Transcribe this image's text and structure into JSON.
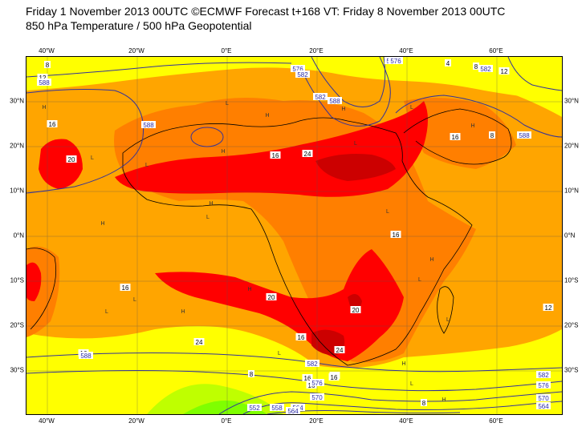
{
  "title": {
    "line1": "Friday 1 November 2013 00UTC ©ECMWF Forecast t+168 VT: Friday 8 November 2013 00UTC",
    "line2": "850 hPa Temperature / 500 hPa Geopotential"
  },
  "axes": {
    "lon_ticks": [
      "40°W",
      "20°W",
      "0°E",
      "20°E",
      "40°E",
      "60°E"
    ],
    "lat_ticks_left": [
      "30°N",
      "20°N",
      "10°N",
      "0°N",
      "10°S",
      "20°S",
      "30°S"
    ],
    "lat_ticks_right": [
      "30°N",
      "20°N",
      "10°N",
      "0°N",
      "10°S",
      "20°S",
      "30°S"
    ]
  },
  "colors": {
    "ocean_warm": "#ffa500",
    "land_warm": "#ff7f00",
    "cool_yellow": "#ffff00",
    "cool_green": "#bfff00",
    "cold_green": "#7fff00",
    "hot_red": "#ff0000",
    "hottest": "#cc0000",
    "contour": "#333399",
    "coast": "#000000"
  },
  "temperature_labels": [
    "16",
    "20",
    "16",
    "24",
    "20",
    "16",
    "16",
    "16",
    "16",
    "20",
    "24",
    "16",
    "24",
    "16",
    "12",
    "8",
    "4",
    "8",
    "12",
    "8",
    "12",
    "8",
    "16",
    "16",
    "16",
    "8"
  ],
  "geopotential_labels": [
    "570",
    "588",
    "576",
    "582",
    "582",
    "588",
    "576",
    "582",
    "588",
    "552",
    "558",
    "564",
    "564",
    "570",
    "576",
    "582",
    "576",
    "570",
    "564",
    "582",
    "588",
    "588"
  ],
  "pressure_markers": [
    "H",
    "L",
    "H",
    "L",
    "H",
    "L",
    "H",
    "L",
    "H",
    "L",
    "H",
    "L",
    "H",
    "L",
    "H",
    "L",
    "L",
    "H",
    "L",
    "H",
    "L",
    "H",
    "L",
    "H",
    "L"
  ]
}
